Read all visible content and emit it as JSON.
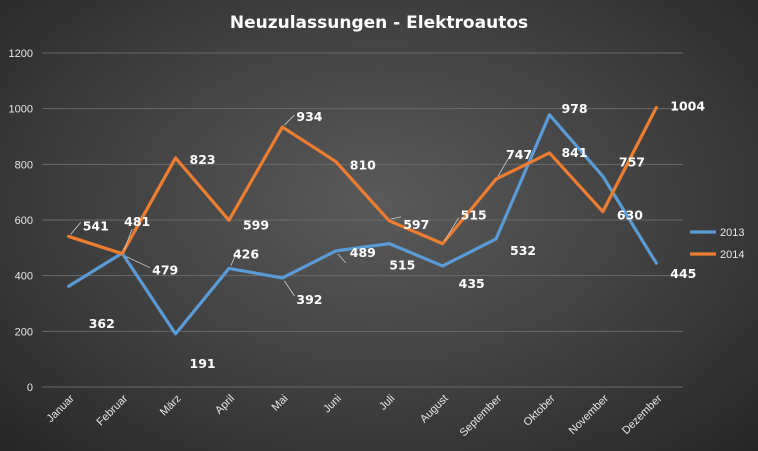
{
  "chart_data": {
    "type": "line",
    "title": "Neuzulassungen  - Elektroautos",
    "xlabel": "",
    "ylabel": "",
    "ylim": [
      0,
      1200
    ],
    "yticks": [
      0,
      200,
      400,
      600,
      800,
      1000,
      1200
    ],
    "grid": true,
    "legend_position": "right",
    "categories": [
      "Januar",
      "Februar",
      "März",
      "April",
      "Mai",
      "Juni",
      "Juli",
      "August",
      "September",
      "Oktober",
      "November",
      "Dezember"
    ],
    "series": [
      {
        "name": "2013",
        "color": "#5b9bd5",
        "values": [
          362,
          481,
          191,
          426,
          392,
          489,
          515,
          435,
          532,
          978,
          757,
          445
        ]
      },
      {
        "name": "2014",
        "color": "#ed7d31",
        "values": [
          541,
          479,
          823,
          599,
          934,
          810,
          597,
          515,
          747,
          841,
          630,
          1004
        ]
      }
    ]
  }
}
